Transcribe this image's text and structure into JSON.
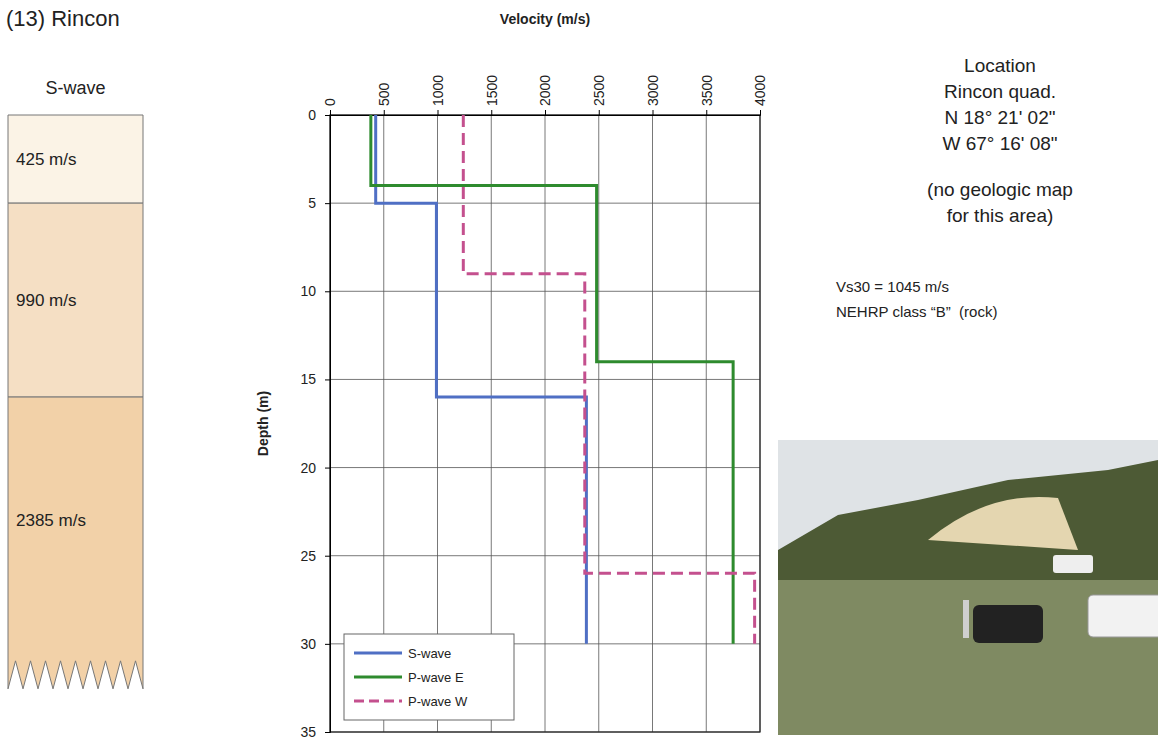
{
  "chart_data": {
    "type": "line",
    "x_label": "Velocity (m/s)",
    "y_label": "Depth (m)",
    "xlim": [
      0,
      4000
    ],
    "xticks": [
      0,
      500,
      1000,
      1500,
      2000,
      2500,
      3000,
      3500,
      4000
    ],
    "ylim": [
      0,
      35
    ],
    "yticks": [
      0,
      5,
      10,
      15,
      20,
      25,
      30,
      35
    ],
    "grid": true,
    "legend": "lower left",
    "series": [
      {
        "name": "S-wave",
        "color": "#4f6fc4",
        "line_style": "solid",
        "x": [
          425,
          425,
          990,
          990,
          2385,
          2385
        ],
        "values": [
          0,
          5,
          5,
          16,
          16,
          30
        ]
      },
      {
        "name": "P-wave E",
        "color": "#2e8b2e",
        "line_style": "solid",
        "x": [
          380,
          380,
          2480,
          2480,
          3750,
          3750
        ],
        "values": [
          0,
          4,
          4,
          14,
          14,
          30
        ]
      },
      {
        "name": "P-wave W",
        "color": "#c4508e",
        "line_style": "dashed",
        "x": [
          1240,
          1240,
          2370,
          2370,
          3950,
          3950
        ],
        "values": [
          0,
          9,
          9,
          26,
          26,
          30
        ]
      }
    ]
  },
  "figure": {
    "title": "(13) Rincon",
    "column": {
      "title": "S-wave",
      "layers": [
        {
          "label": "425 m/s",
          "top": 0,
          "bottom": 5,
          "color": "#fbf3e6"
        },
        {
          "label": "990 m/s",
          "top": 5,
          "bottom": 16,
          "color": "#f5dfc4"
        },
        {
          "label": "2385 m/s",
          "top": 16,
          "bottom": 30,
          "color": "#f2d1a8"
        }
      ]
    },
    "location": [
      "Location",
      "Rincon quad.",
      "N 18° 21' 02\"",
      "W 67° 16' 08\""
    ],
    "map_note": [
      "(no geologic map",
      "for this area)"
    ],
    "site": [
      "Vs30 = 1045 m/s",
      "NEHRP class “B”  (rock)"
    ]
  }
}
